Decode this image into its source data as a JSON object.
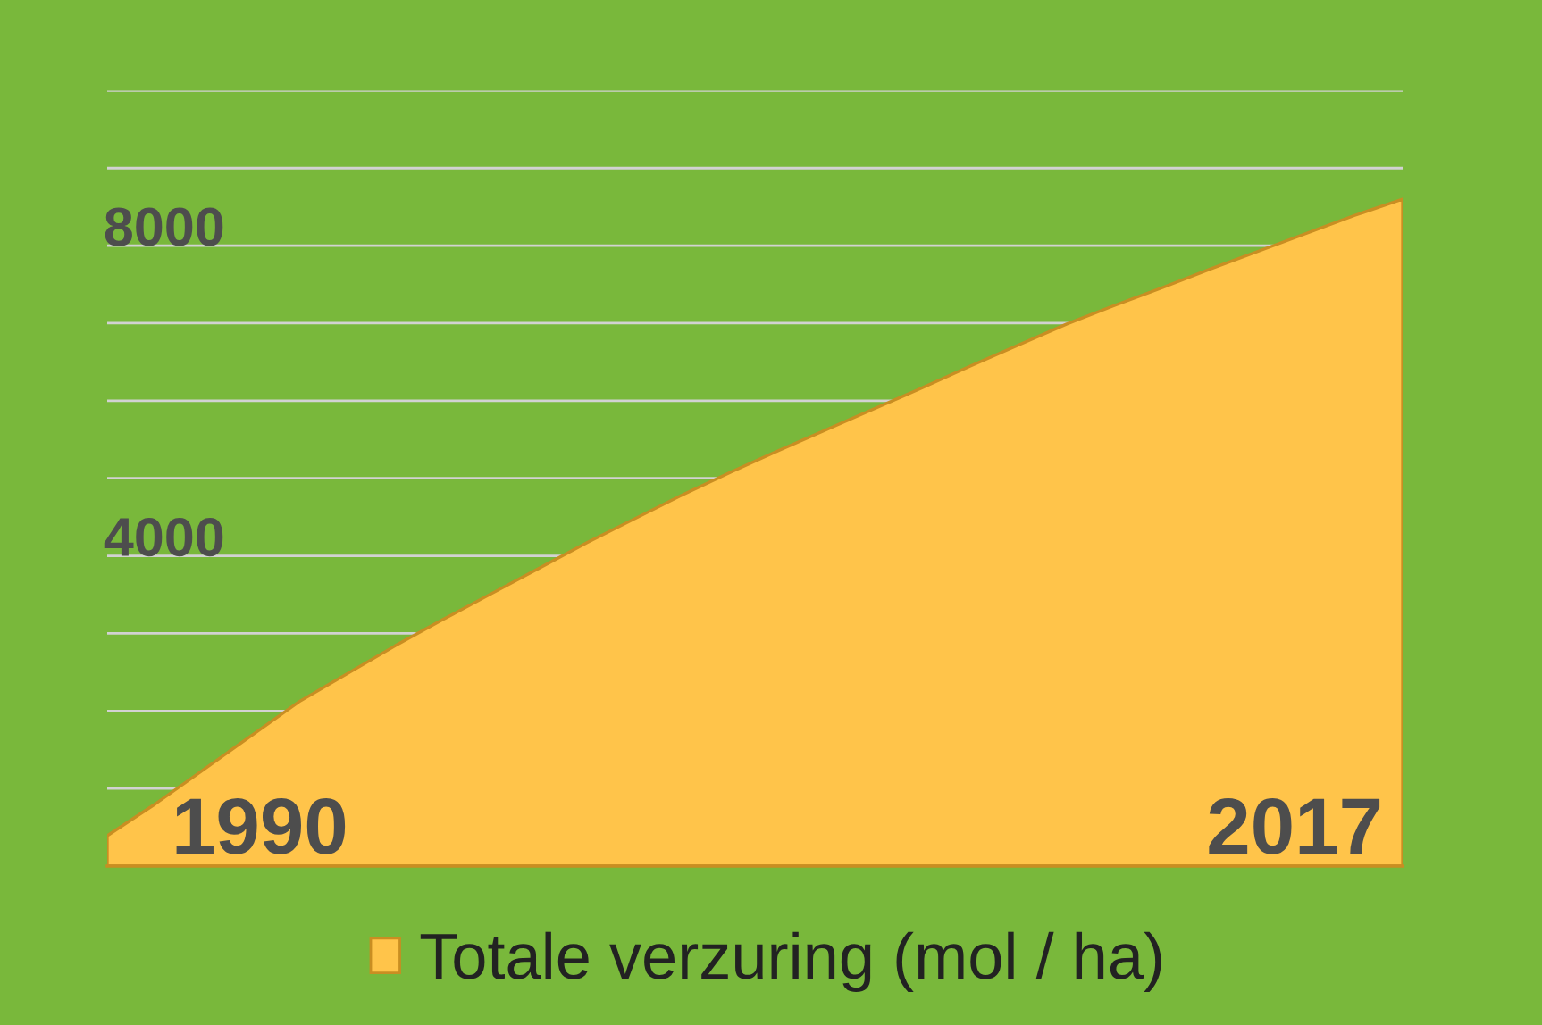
{
  "chart_data": {
    "type": "area",
    "categories": [
      null,
      null,
      null,
      null,
      null,
      null,
      null,
      null,
      null,
      null,
      null,
      null,
      null,
      null,
      null,
      null,
      null,
      null,
      null,
      null,
      null,
      null,
      null,
      null,
      null,
      null,
      null,
      null
    ],
    "series": [
      {
        "name": "Totale verzuring (mol / ha)",
        "color": "#ffc44a",
        "values": [
          390,
          800,
          1240,
          1680,
          2120,
          2480,
          2840,
          3180,
          3510,
          3840,
          4170,
          4480,
          4790,
          5080,
          5360,
          5630,
          5900,
          6170,
          6450,
          6720,
          6990,
          7230,
          7460,
          7700,
          7930,
          8160,
          8390,
          8600
        ]
      }
    ],
    "ylim": [
      0,
      10000
    ],
    "yticks": [
      {
        "value": 0,
        "label": null
      },
      {
        "value": 1000,
        "label": null
      },
      {
        "value": 2000,
        "label": null
      },
      {
        "value": 3000,
        "label": null
      },
      {
        "value": 4000,
        "label": "4000"
      },
      {
        "value": 5000,
        "label": null
      },
      {
        "value": 6000,
        "label": null
      },
      {
        "value": 7000,
        "label": null
      },
      {
        "value": 8000,
        "label": "8000"
      },
      {
        "value": 9000,
        "label": null
      },
      {
        "value": 10000,
        "label": null
      }
    ],
    "grid": "y",
    "legend": "bottom",
    "annotations": [
      "1990",
      "2017"
    ]
  }
}
